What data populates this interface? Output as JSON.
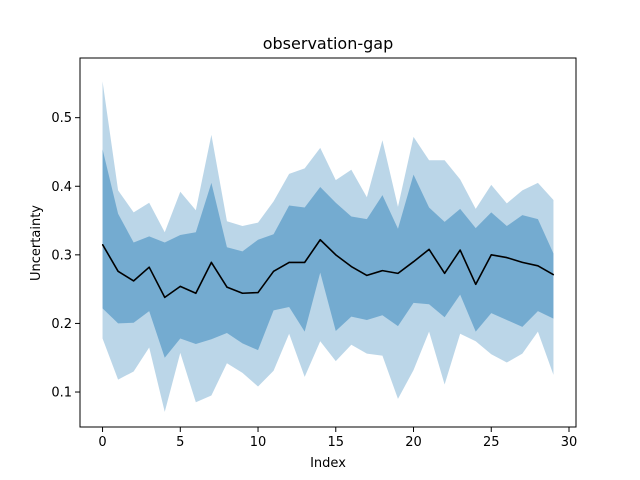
{
  "chart_data": {
    "type": "line",
    "title": "observation-gap",
    "xlabel": "Index",
    "ylabel": "Uncertainty",
    "xlim": [
      -1.45,
      30.45
    ],
    "ylim": [
      0.049,
      0.587
    ],
    "grid": false,
    "x_ticks": [
      0,
      5,
      10,
      15,
      20,
      25,
      30
    ],
    "y_ticks": [
      0.1,
      0.2,
      0.3,
      0.4,
      0.5
    ],
    "x_tick_labels": [
      "0",
      "5",
      "10",
      "15",
      "20",
      "25",
      "30"
    ],
    "y_tick_labels": [
      "0.1",
      "0.2",
      "0.3",
      "0.4",
      "0.5"
    ],
    "x": [
      0,
      1,
      2,
      3,
      4,
      5,
      6,
      7,
      8,
      9,
      10,
      11,
      12,
      13,
      14,
      15,
      16,
      17,
      18,
      19,
      20,
      21,
      22,
      23,
      24,
      25,
      26,
      27,
      28,
      29
    ],
    "series": [
      {
        "role": "mean",
        "color": "#000000",
        "values": [
          0.315,
          0.276,
          0.262,
          0.282,
          0.238,
          0.254,
          0.244,
          0.289,
          0.253,
          0.244,
          0.245,
          0.276,
          0.289,
          0.289,
          0.322,
          0.3,
          0.283,
          0.27,
          0.277,
          0.273,
          0.29,
          0.308,
          0.273,
          0.307,
          0.257,
          0.3,
          0.296,
          0.289,
          0.284,
          0.271
        ]
      },
      {
        "role": "inner-band",
        "color": "#1f77b4",
        "opacity": 0.45,
        "upper": [
          0.454,
          0.36,
          0.318,
          0.327,
          0.318,
          0.329,
          0.333,
          0.405,
          0.311,
          0.305,
          0.322,
          0.33,
          0.372,
          0.369,
          0.399,
          0.376,
          0.356,
          0.352,
          0.387,
          0.338,
          0.417,
          0.369,
          0.348,
          0.367,
          0.339,
          0.362,
          0.342,
          0.358,
          0.352,
          0.302
        ],
        "lower": [
          0.222,
          0.2,
          0.201,
          0.218,
          0.15,
          0.178,
          0.17,
          0.177,
          0.186,
          0.171,
          0.161,
          0.219,
          0.224,
          0.188,
          0.274,
          0.189,
          0.21,
          0.205,
          0.212,
          0.196,
          0.23,
          0.228,
          0.209,
          0.242,
          0.188,
          0.215,
          0.205,
          0.195,
          0.218,
          0.207
        ]
      },
      {
        "role": "outer-band",
        "color": "#1f77b4",
        "opacity": 0.3,
        "upper": [
          0.553,
          0.394,
          0.362,
          0.376,
          0.333,
          0.392,
          0.365,
          0.475,
          0.349,
          0.342,
          0.347,
          0.378,
          0.418,
          0.426,
          0.456,
          0.409,
          0.424,
          0.384,
          0.467,
          0.37,
          0.472,
          0.438,
          0.438,
          0.41,
          0.367,
          0.402,
          0.375,
          0.394,
          0.405,
          0.38
        ],
        "lower": [
          0.178,
          0.118,
          0.13,
          0.165,
          0.071,
          0.157,
          0.085,
          0.095,
          0.142,
          0.128,
          0.108,
          0.131,
          0.185,
          0.122,
          0.174,
          0.145,
          0.169,
          0.156,
          0.153,
          0.09,
          0.132,
          0.188,
          0.111,
          0.185,
          0.174,
          0.155,
          0.143,
          0.156,
          0.188,
          0.125
        ]
      }
    ]
  }
}
